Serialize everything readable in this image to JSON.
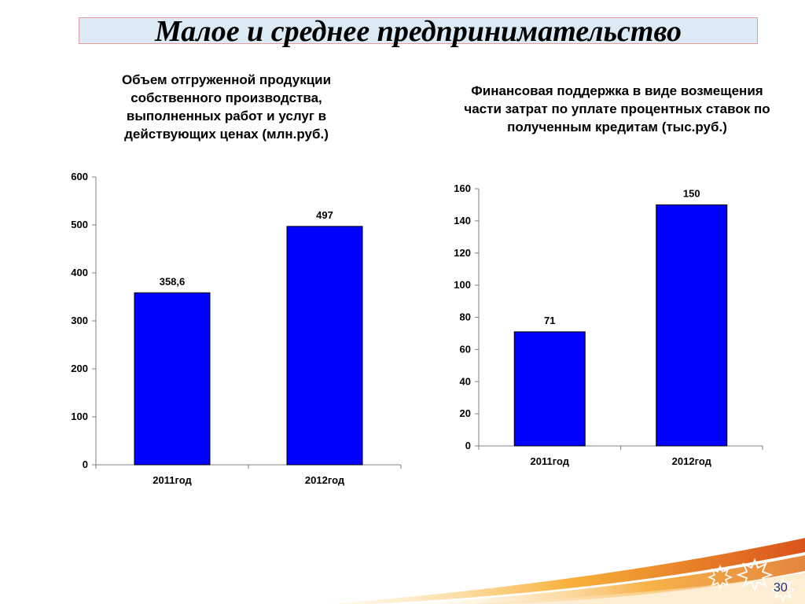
{
  "slide": {
    "title": "Малое и среднее предпринимательство",
    "page_number": "30"
  },
  "colors": {
    "bar_fill": "#0000ff",
    "bar_stroke": "#000000",
    "title_bar_fill": "#dbeaf5",
    "title_bar_border": "#e39b9b",
    "swoosh_orange": "#f39a1e",
    "swoosh_dark": "#d9541a"
  },
  "chart_data": [
    {
      "type": "bar",
      "title": "Объем отгруженной продукции собственного производства, выполненных работ и услуг в действующих ценах (млн.руб.)",
      "categories": [
        "2011год",
        "2012год"
      ],
      "values": [
        358.6,
        497
      ],
      "data_labels": [
        "358,6",
        "497"
      ],
      "xlabel": "",
      "ylabel": "",
      "ylim": [
        0,
        600
      ],
      "yticks": [
        0,
        100,
        200,
        300,
        400,
        500,
        600
      ],
      "grid": false,
      "legend": "none"
    },
    {
      "type": "bar",
      "title": "Финансовая поддержка в виде возмещения части затрат по уплате процентных ставок по полученным кредитам (тыс.руб.)",
      "categories": [
        "2011год",
        "2012год"
      ],
      "values": [
        71,
        150
      ],
      "data_labels": [
        "71",
        "150"
      ],
      "xlabel": "",
      "ylabel": "",
      "ylim": [
        0,
        160
      ],
      "yticks": [
        0,
        20,
        40,
        60,
        80,
        100,
        120,
        140,
        160
      ],
      "grid": false,
      "legend": "none"
    }
  ]
}
